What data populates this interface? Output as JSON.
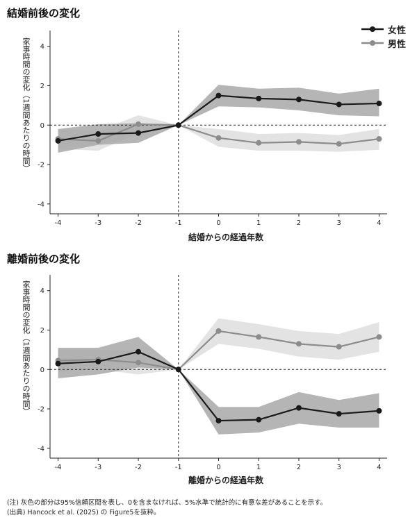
{
  "note": "(注) 灰色の部分は95%信頼区間を表し、0を含まなければ、5%水準で統計的に有意な差があることを示す。",
  "source": "(出典) Hancock et al. (2025) の Figure5を抜粋。",
  "colors": {
    "female": "#1a1a1a",
    "male": "#8c8c8c",
    "female_band": "#a8a8a8",
    "male_band": "#e0e0e0"
  },
  "legend": {
    "female": "女性",
    "male": "男性"
  },
  "chart_data": [
    {
      "type": "line",
      "title": "結婚前後の変化",
      "xlabel": "結婚からの経過年数",
      "ylabel": "家事時間の変化（1週間あたりの時間）",
      "x": [
        -4,
        -3,
        -2,
        -1,
        0,
        1,
        2,
        3,
        4
      ],
      "xticks": [
        "-4",
        "-3",
        "-2",
        "-1",
        "0",
        "1",
        "2",
        "3",
        "4"
      ],
      "yticks": [
        "-4",
        "-2",
        "0",
        "2",
        "4"
      ],
      "ylim": [
        -4.5,
        4.8
      ],
      "xlim": [
        -4.2,
        4.2
      ],
      "reference_lines": {
        "x": -1,
        "y": 0
      },
      "legend_position": "top-right",
      "series": [
        {
          "name": "女性",
          "values": [
            -0.8,
            -0.45,
            -0.4,
            0.0,
            1.5,
            1.35,
            1.3,
            1.05,
            1.1
          ],
          "ci_lower": [
            -1.4,
            -1.0,
            -0.9,
            0.0,
            0.95,
            0.9,
            0.75,
            0.5,
            0.45
          ],
          "ci_upper": [
            -0.2,
            0.05,
            0.1,
            0.0,
            2.05,
            1.85,
            1.9,
            1.6,
            1.85
          ]
        },
        {
          "name": "男性",
          "values": [
            -0.7,
            -0.8,
            0.05,
            0.0,
            -0.65,
            -0.9,
            -0.85,
            -0.95,
            -0.7
          ],
          "ci_lower": [
            -1.2,
            -1.3,
            -0.4,
            0.0,
            -1.1,
            -1.3,
            -1.3,
            -1.35,
            -1.25
          ],
          "ci_upper": [
            -0.2,
            -0.3,
            0.5,
            0.0,
            -0.2,
            -0.45,
            -0.4,
            -0.5,
            -0.2
          ]
        }
      ]
    },
    {
      "type": "line",
      "title": "離婚前後の変化",
      "xlabel": "離婚からの経過年数",
      "ylabel": "家事時間の変化（1週間あたりの時間）",
      "x": [
        -4,
        -3,
        -2,
        -1,
        0,
        1,
        2,
        3,
        4
      ],
      "xticks": [
        "-4",
        "-3",
        "-2",
        "-1",
        "0",
        "1",
        "2",
        "3",
        "4"
      ],
      "yticks": [
        "-4",
        "-2",
        "0",
        "2",
        "4"
      ],
      "ylim": [
        -4.5,
        4.8
      ],
      "xlim": [
        -4.2,
        4.2
      ],
      "reference_lines": {
        "x": -1,
        "y": 0
      },
      "series": [
        {
          "name": "女性",
          "values": [
            0.3,
            0.4,
            0.9,
            0.0,
            -2.6,
            -2.55,
            -1.95,
            -2.25,
            -2.1
          ],
          "ci_lower": [
            -0.45,
            -0.25,
            0.1,
            0.0,
            -3.3,
            -3.2,
            -2.75,
            -2.95,
            -2.95
          ],
          "ci_upper": [
            1.1,
            1.1,
            1.65,
            0.0,
            -1.9,
            -1.9,
            -1.15,
            -1.55,
            -1.2
          ]
        },
        {
          "name": "男性",
          "values": [
            0.45,
            0.5,
            0.35,
            0.0,
            1.95,
            1.65,
            1.3,
            1.15,
            1.65
          ],
          "ci_lower": [
            -0.1,
            0.0,
            -0.25,
            0.0,
            1.3,
            1.05,
            0.65,
            0.5,
            0.9
          ],
          "ci_upper": [
            1.0,
            1.0,
            0.95,
            0.0,
            2.6,
            2.3,
            1.95,
            1.8,
            2.4
          ]
        }
      ]
    }
  ]
}
